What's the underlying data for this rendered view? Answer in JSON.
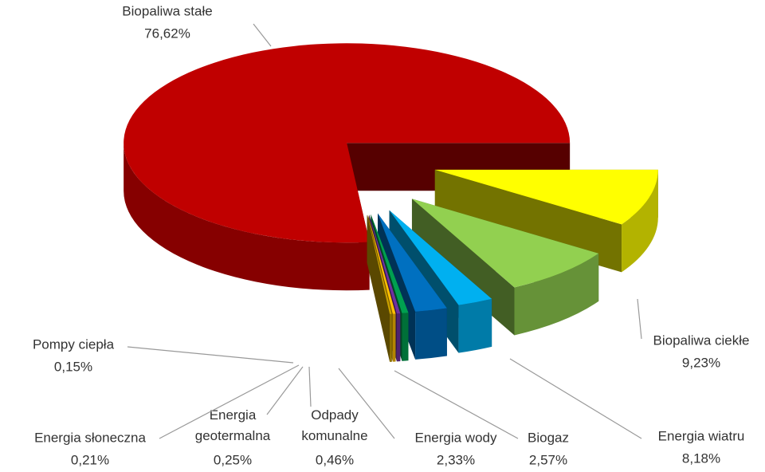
{
  "chart_data": {
    "type": "pie3d",
    "categories": [
      "Biopaliwa stałe",
      "Biopaliwa ciekłe",
      "Energia wiatru",
      "Biogaz",
      "Energia wody",
      "Odpady komunalne",
      "Energia geotermalna",
      "Energia słoneczna",
      "Pompy ciepła"
    ],
    "values": [
      76.62,
      9.23,
      8.18,
      2.57,
      2.33,
      0.46,
      0.25,
      0.21,
      0.15
    ],
    "value_labels": [
      "76,62%",
      "9,23%",
      "8,18%",
      "2,57%",
      "2,33%",
      "0,46%",
      "0,25%",
      "0,21%",
      "0,15%"
    ],
    "colors": [
      "#c00000",
      "#ffff00",
      "#92d050",
      "#00b0f0",
      "#0070c0",
      "#00a050",
      "#7030a0",
      "#ffc000",
      "#c8a000"
    ]
  }
}
